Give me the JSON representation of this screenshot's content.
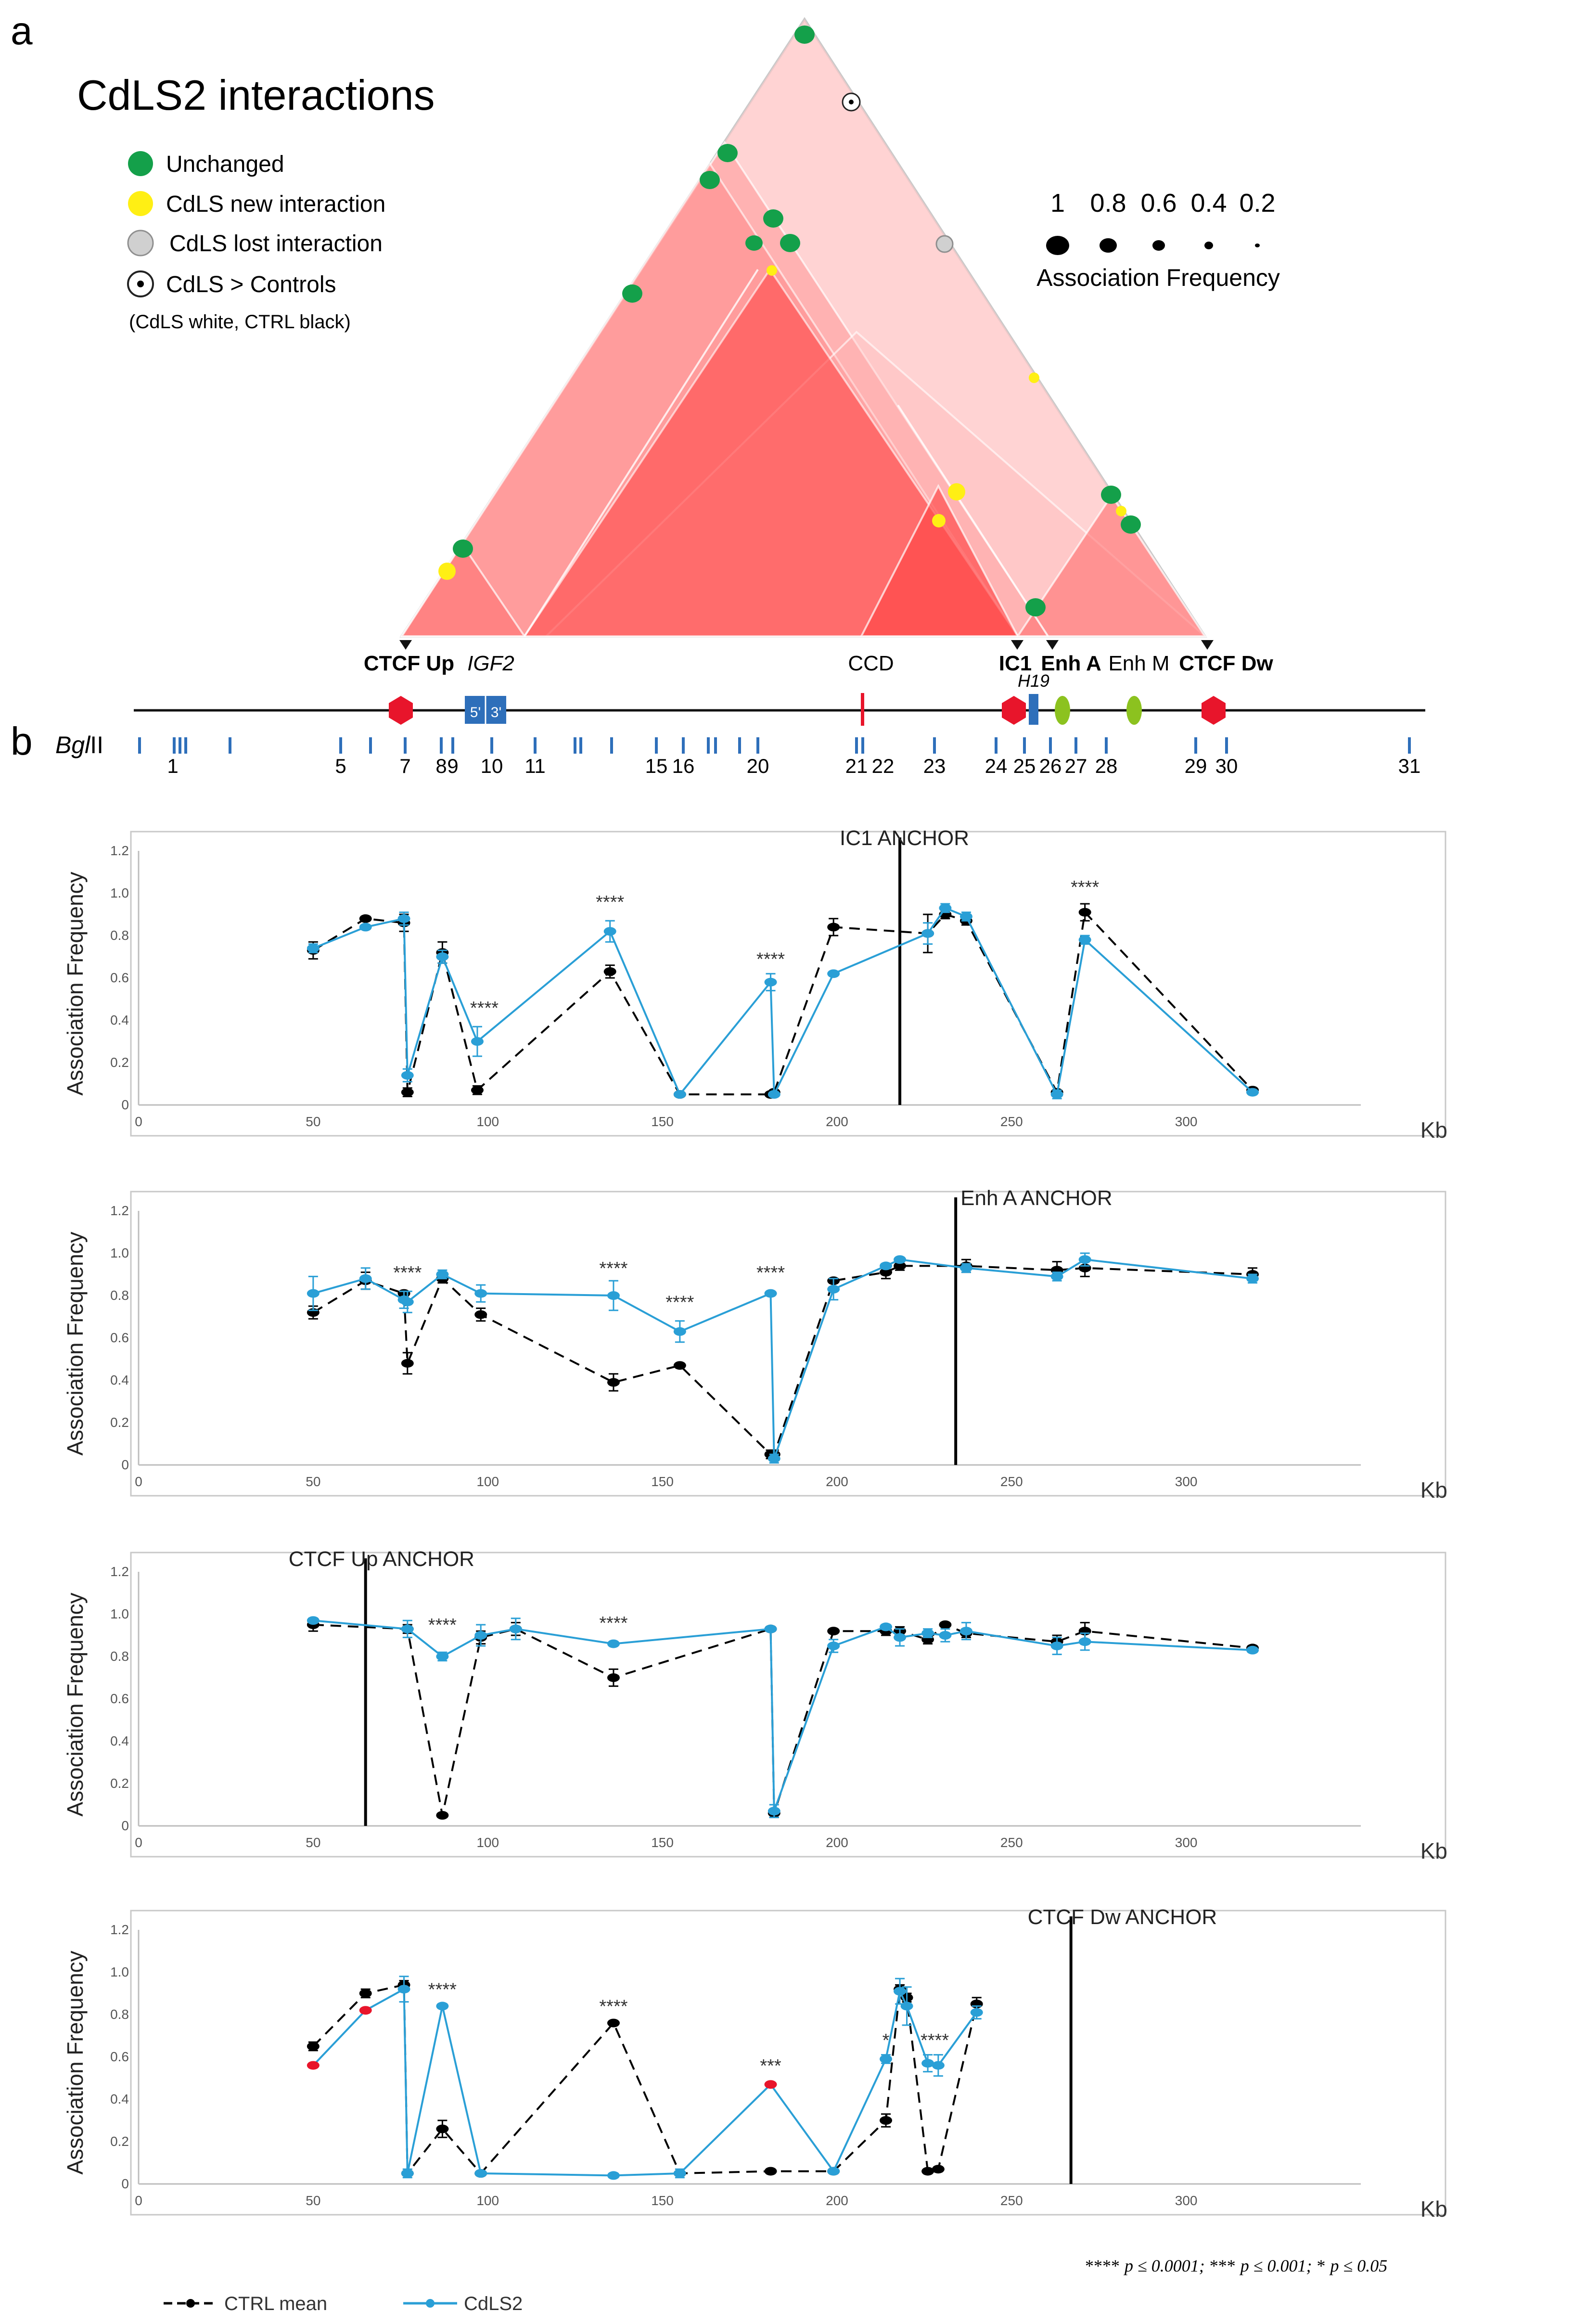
{
  "panel_a": {
    "label": "a",
    "title": "CdLS2 interactions",
    "legend": [
      {
        "label": "Unchanged",
        "color": "#14a04a"
      },
      {
        "label": "CdLS new interaction",
        "color": "#ffef14"
      },
      {
        "label": "CdLS lost interaction",
        "color": "#d0d0d0"
      },
      {
        "label": "CdLS > Controls",
        "color": "#ffffff"
      }
    ],
    "legend_note": "(CdLS white, CTRL black)",
    "size_scale": {
      "values": [
        "1",
        "0.8",
        "0.6",
        "0.4",
        "0.2"
      ],
      "caption": "Association Frequency"
    },
    "anchor_labels": [
      {
        "text": "CTCF Up",
        "bold": true,
        "italic": false
      },
      {
        "text": "IGF2",
        "bold": false,
        "italic": true
      },
      {
        "text": "CCD",
        "bold": false,
        "italic": false
      },
      {
        "text": "IC1",
        "bold": true,
        "italic": false
      },
      {
        "text": "Enh A",
        "bold": true,
        "italic": false
      },
      {
        "text": "Enh M",
        "bold": false,
        "italic": false
      },
      {
        "text": "CTCF Dw",
        "bold": true,
        "italic": false
      }
    ],
    "gene_labels": {
      "h19": "H19",
      "exon5": "5'",
      "exon3": "3'"
    },
    "interaction_dots": [
      {
        "status": "unchanged",
        "size": "large"
      },
      {
        "status": "greater",
        "size": "large"
      },
      {
        "status": "unchanged",
        "size": "large"
      },
      {
        "status": "unchanged",
        "size": "large"
      },
      {
        "status": "unchanged",
        "size": "large"
      },
      {
        "status": "unchanged",
        "size": "large"
      },
      {
        "status": "lost",
        "size": "large"
      },
      {
        "status": "unchanged",
        "size": "large"
      },
      {
        "status": "new",
        "size": "small"
      },
      {
        "status": "new",
        "size": "small"
      },
      {
        "status": "new",
        "size": "medium"
      },
      {
        "status": "new",
        "size": "small"
      },
      {
        "status": "unchanged",
        "size": "large"
      },
      {
        "status": "new",
        "size": "small"
      },
      {
        "status": "unchanged",
        "size": "large"
      },
      {
        "status": "unchanged",
        "size": "large"
      },
      {
        "status": "new",
        "size": "medium"
      },
      {
        "status": "unchanged",
        "size": "large"
      }
    ]
  },
  "panel_b": {
    "label": "b",
    "enzyme_prefix": "Bgl",
    "enzyme_suffix": "II",
    "fragment_numbers": [
      "1",
      "5",
      "7",
      "8",
      "9",
      "10",
      "11",
      "15",
      "16",
      "20",
      "21",
      "22",
      "23",
      "24",
      "25",
      "26",
      "27",
      "28",
      "29",
      "30",
      "31"
    ]
  },
  "chart_data": [
    {
      "type": "line",
      "title": "IC1 ANCHOR",
      "anchor_kb": 218,
      "xlabel": "Kb",
      "ylabel": "Association Frequency",
      "xlim": [
        0,
        350
      ],
      "ylim": [
        0,
        1.2
      ],
      "xticks": [
        "0",
        "50",
        "100",
        "150",
        "200",
        "250",
        "300"
      ],
      "yticks": [
        "0",
        "0.2",
        "0.4",
        "0.6",
        "0.8",
        "1.0",
        "1.2"
      ],
      "series": [
        {
          "name": "CTRL mean",
          "x": [
            50,
            65,
            76,
            77,
            87,
            97,
            135,
            155,
            181,
            182,
            199,
            226,
            231,
            237,
            263,
            271,
            319
          ],
          "y": [
            0.73,
            0.88,
            0.86,
            0.06,
            0.72,
            0.07,
            0.63,
            0.05,
            0.05,
            0.06,
            0.84,
            0.81,
            0.9,
            0.87,
            0.06,
            0.91,
            0.07
          ],
          "err": [
            0.04,
            0.01,
            0.04,
            0.02,
            0.05,
            0.02,
            0.03,
            0.01,
            0.01,
            0.01,
            0.04,
            0.09,
            0.02,
            0.02,
            0.01,
            0.04,
            0.01
          ]
        },
        {
          "name": "CdLS2",
          "x": [
            50,
            65,
            76,
            77,
            87,
            97,
            135,
            155,
            181,
            182,
            199,
            226,
            231,
            237,
            263,
            271,
            319
          ],
          "y": [
            0.74,
            0.84,
            0.88,
            0.14,
            0.7,
            0.3,
            0.82,
            0.05,
            0.58,
            0.05,
            0.62,
            0.81,
            0.93,
            0.89,
            0.05,
            0.78,
            0.06
          ],
          "err": [
            0.02,
            0.01,
            0.03,
            0.03,
            0.03,
            0.07,
            0.05,
            0.01,
            0.04,
            0.01,
            0.01,
            0.05,
            0.02,
            0.02,
            0.02,
            0.02,
            0.01
          ]
        }
      ],
      "annotations": [
        {
          "text": "****",
          "x": 99,
          "y": 0.43
        },
        {
          "text": "****",
          "x": 135,
          "y": 0.93
        },
        {
          "text": "****",
          "x": 181,
          "y": 0.66
        },
        {
          "text": "****",
          "x": 271,
          "y": 1.0
        }
      ]
    },
    {
      "type": "line",
      "title": "Enh A ANCHOR",
      "anchor_kb": 234,
      "xlabel": "Kb",
      "ylabel": "Association Frequency",
      "xlim": [
        0,
        350
      ],
      "ylim": [
        0,
        1.2
      ],
      "xticks": [
        "0",
        "50",
        "100",
        "150",
        "200",
        "250",
        "300"
      ],
      "yticks": [
        "0",
        "0.2",
        "0.4",
        "0.6",
        "0.8",
        "1.0",
        "1.2"
      ],
      "series": [
        {
          "name": "CTRL mean",
          "x": [
            50,
            65,
            76,
            77,
            87,
            98,
            136,
            155,
            181,
            182,
            199,
            214,
            218,
            237,
            263,
            271,
            319
          ],
          "y": [
            0.72,
            0.87,
            0.81,
            0.48,
            0.88,
            0.71,
            0.39,
            0.47,
            0.05,
            0.05,
            0.87,
            0.91,
            0.94,
            0.94,
            0.92,
            0.93,
            0.9
          ],
          "err": [
            0.03,
            0.04,
            0.01,
            0.05,
            0.02,
            0.03,
            0.04,
            0.01,
            0.02,
            0.02,
            0.01,
            0.03,
            0.02,
            0.03,
            0.04,
            0.04,
            0.03
          ]
        },
        {
          "name": "CdLS2",
          "x": [
            50,
            65,
            76,
            77,
            87,
            98,
            136,
            155,
            181,
            182,
            199,
            214,
            218,
            237,
            263,
            271,
            319
          ],
          "y": [
            0.81,
            0.88,
            0.78,
            0.77,
            0.9,
            0.81,
            0.8,
            0.63,
            0.81,
            0.03,
            0.83,
            0.94,
            0.97,
            0.93,
            0.89,
            0.97,
            0.88
          ],
          "err": [
            0.08,
            0.05,
            0.04,
            0.05,
            0.02,
            0.04,
            0.07,
            0.05,
            0.01,
            0.02,
            0.05,
            0.01,
            0.01,
            0.02,
            0.02,
            0.03,
            0.02
          ]
        }
      ],
      "annotations": [
        {
          "text": "****",
          "x": 77,
          "y": 0.88
        },
        {
          "text": "****",
          "x": 136,
          "y": 0.9
        },
        {
          "text": "****",
          "x": 155,
          "y": 0.74
        },
        {
          "text": "****",
          "x": 181,
          "y": 0.88
        }
      ]
    },
    {
      "type": "line",
      "title": "CTCF Up ANCHOR",
      "anchor_kb": 65,
      "xlabel": "Kb",
      "ylabel": "Association Frequency",
      "xlim": [
        0,
        350
      ],
      "ylim": [
        0,
        1.2
      ],
      "xticks": [
        "0",
        "50",
        "100",
        "150",
        "200",
        "250",
        "300"
      ],
      "yticks": [
        "0",
        "0.2",
        "0.4",
        "0.6",
        "0.8",
        "1.0",
        "1.2"
      ],
      "series": [
        {
          "name": "CTRL mean",
          "x": [
            50,
            77,
            87,
            98,
            108,
            136,
            181,
            182,
            199,
            214,
            218,
            226,
            231,
            237,
            263,
            271,
            319
          ],
          "y": [
            0.95,
            0.93,
            0.05,
            0.89,
            0.93,
            0.7,
            0.93,
            0.06,
            0.92,
            0.92,
            0.92,
            0.88,
            0.95,
            0.91,
            0.87,
            0.92,
            0.84
          ],
          "err": [
            0.03,
            0.02,
            0.01,
            0.03,
            0.03,
            0.04,
            0.01,
            0.02,
            0.01,
            0.02,
            0.02,
            0.02,
            0.01,
            0.02,
            0.03,
            0.04,
            0.01
          ]
        },
        {
          "name": "CdLS2",
          "x": [
            50,
            77,
            87,
            98,
            108,
            136,
            181,
            182,
            199,
            214,
            218,
            226,
            231,
            237,
            263,
            271,
            319
          ],
          "y": [
            0.97,
            0.93,
            0.8,
            0.9,
            0.93,
            0.86,
            0.93,
            0.07,
            0.85,
            0.94,
            0.89,
            0.91,
            0.9,
            0.92,
            0.85,
            0.87,
            0.83
          ],
          "err": [
            0.01,
            0.04,
            0.02,
            0.05,
            0.05,
            0.01,
            0.01,
            0.03,
            0.03,
            0.01,
            0.04,
            0.02,
            0.03,
            0.04,
            0.04,
            0.04,
            0.01
          ]
        }
      ],
      "annotations": [
        {
          "text": "****",
          "x": 87,
          "y": 0.92
        },
        {
          "text": "****",
          "x": 136,
          "y": 0.93
        }
      ]
    },
    {
      "type": "line",
      "title": "CTCF Dw ANCHOR",
      "anchor_kb": 267,
      "xlabel": "Kb",
      "ylabel": "Association Frequency",
      "xlim": [
        0,
        350
      ],
      "ylim": [
        0,
        1.2
      ],
      "xticks": [
        "0",
        "50",
        "100",
        "150",
        "200",
        "250",
        "300"
      ],
      "yticks": [
        "0",
        "0.2",
        "0.4",
        "0.6",
        "0.8",
        "1.0",
        "1.2"
      ],
      "series": [
        {
          "name": "CTRL mean",
          "x": [
            50,
            65,
            76,
            77,
            87,
            98,
            136,
            155,
            181,
            199,
            214,
            218,
            220,
            226,
            229,
            240
          ],
          "y": [
            0.65,
            0.9,
            0.94,
            0.05,
            0.26,
            0.05,
            0.76,
            0.05,
            0.06,
            0.06,
            0.3,
            0.92,
            0.88,
            0.06,
            0.07,
            0.85
          ],
          "err": [
            0.02,
            0.02,
            0.02,
            0.01,
            0.04,
            0.01,
            0.01,
            0.01,
            0.01,
            0.01,
            0.03,
            0.02,
            0.02,
            0.01,
            0.01,
            0.03
          ]
        },
        {
          "name": "CdLS2",
          "x": [
            50,
            65,
            76,
            77,
            87,
            98,
            136,
            155,
            181,
            199,
            214,
            218,
            220,
            226,
            229,
            240
          ],
          "y": [
            0.56,
            0.82,
            0.92,
            0.05,
            0.84,
            0.05,
            0.04,
            0.05,
            0.47,
            0.06,
            0.59,
            0.91,
            0.84,
            0.57,
            0.56,
            0.81
          ],
          "err": [
            0.01,
            0.01,
            0.06,
            0.02,
            0.01,
            0.01,
            0.01,
            0.02,
            0.01,
            0.01,
            0.02,
            0.06,
            0.09,
            0.04,
            0.05,
            0.03
          ]
        }
      ],
      "significant_points": [
        0,
        1,
        8
      ],
      "annotations": [
        {
          "text": "****",
          "x": 87,
          "y": 0.89
        },
        {
          "text": "****",
          "x": 136,
          "y": 0.81
        },
        {
          "text": "***",
          "x": 181,
          "y": 0.53
        },
        {
          "text": "*",
          "x": 214,
          "y": 0.65
        },
        {
          "text": "****",
          "x": 228,
          "y": 0.65
        }
      ]
    }
  ],
  "legend_b": {
    "ctrl": "CTRL mean",
    "cdls": "CdLS2"
  },
  "pvalue_note": [
    {
      "stars": "****",
      "text": "p ≤ 0.0001;"
    },
    {
      "stars": "***",
      "text": "p ≤ 0.001;"
    },
    {
      "stars": "*",
      "text": "p ≤ 0.05"
    }
  ],
  "colors": {
    "ctrl": "#000000",
    "cdls": "#2a9fd6",
    "significant": "#e8152b",
    "unchanged": "#14a04a",
    "new": "#ffef14",
    "lost": "#d0d0d0",
    "triangle_red": "#ff4b4b",
    "gene_blue": "#2e6fba",
    "enhancer_green": "#8cc21f",
    "ctcf_red": "#e8152b"
  }
}
